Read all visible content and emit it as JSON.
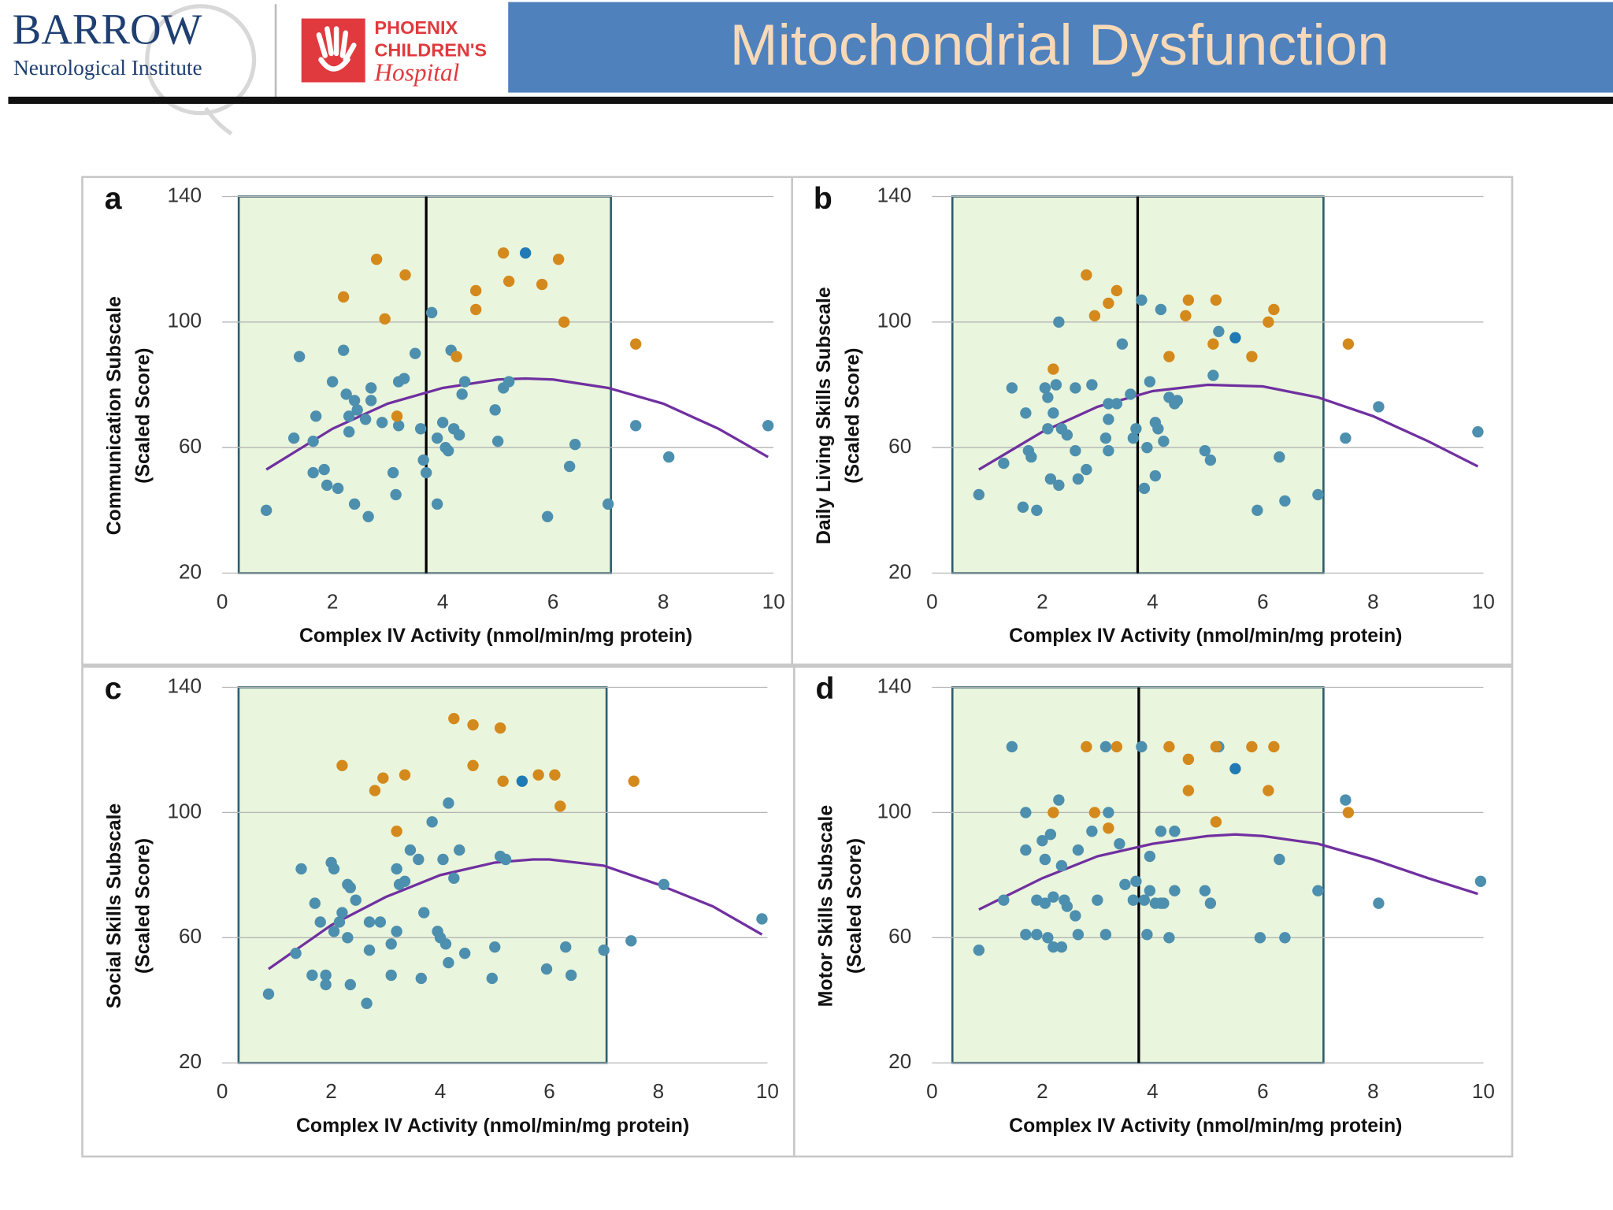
{
  "header": {
    "logo_left": "BARROW",
    "logo_left_sub": "Neurological Institute",
    "logo_right": [
      "PHOENIX",
      "CHILDREN'S",
      "Hospital"
    ],
    "title": "Mitochondrial Dysfunction"
  },
  "chart_data": [
    {
      "type": "scatter",
      "panel_label": "a",
      "ylabel": [
        "Communication Subscale",
        "(Scaled Score)"
      ],
      "xlabel": "Complex IV Activity (nmol/min/mg protein)",
      "xlim": [
        0,
        10
      ],
      "ylim": [
        20,
        140
      ],
      "xticks": [
        0,
        2,
        4,
        6,
        8,
        10
      ],
      "yticks": [
        20,
        60,
        100,
        140
      ],
      "grid": true,
      "region": {
        "x": [
          0.3,
          7.05
        ],
        "color": "#e9f5dc"
      },
      "vline": 3.7,
      "series": [
        {
          "color": "#4d8fae",
          "x": [
            0.8,
            1.3,
            1.4,
            1.65,
            1.7,
            1.65,
            1.85,
            1.9,
            2.0,
            2.1,
            2.2,
            2.25,
            2.3,
            2.3,
            2.4,
            2.4,
            2.45,
            2.6,
            2.65,
            2.7,
            2.7,
            2.9,
            3.1,
            3.15,
            3.2,
            3.2,
            3.3,
            3.5,
            3.6,
            3.65,
            3.7,
            3.8,
            3.9,
            3.9,
            4.0,
            4.05,
            4.15,
            4.1,
            4.2,
            4.3,
            4.35,
            4.4,
            4.95,
            5.0,
            5.1,
            5.2,
            5.9,
            6.3,
            6.4,
            7.0,
            7.5,
            8.1,
            9.9
          ],
          "values": [
            40,
            63,
            89,
            62,
            70,
            52,
            53,
            48,
            81,
            47,
            91,
            77,
            65,
            70,
            42,
            75,
            72,
            69,
            38,
            75,
            79,
            68,
            52,
            45,
            67,
            81,
            82,
            90,
            66,
            56,
            52,
            103,
            42,
            63,
            68,
            60,
            91,
            59,
            66,
            64,
            77,
            81,
            72,
            62,
            79,
            81,
            38,
            54,
            61,
            42,
            67,
            57,
            67
          ]
        },
        {
          "color": "#d4891c",
          "x": [
            2.2,
            2.8,
            2.95,
            3.32,
            3.17,
            4.25,
            4.6,
            4.6,
            5.1,
            5.2,
            5.8,
            6.1,
            6.2,
            7.5
          ],
          "values": [
            108,
            120,
            101,
            115,
            70,
            89,
            110,
            104,
            122,
            113,
            112,
            120,
            100,
            93
          ]
        },
        {
          "color": "#1f7ab5",
          "x": [
            5.5
          ],
          "values": [
            122
          ]
        }
      ],
      "fit": {
        "color": "#7030a0",
        "x": [
          0.8,
          2,
          3,
          4,
          5,
          5.5,
          6,
          7,
          8,
          9,
          9.9
        ],
        "y": [
          53,
          66,
          74,
          79,
          81.7,
          82,
          81.7,
          79,
          74,
          66,
          57
        ]
      }
    },
    {
      "type": "scatter",
      "panel_label": "b",
      "ylabel": [
        "Daily Living Skills Subscale",
        "(Scaled Score)"
      ],
      "xlabel": "Complex IV Activity (nmol/min/mg protein)",
      "xlim": [
        0,
        10
      ],
      "ylim": [
        20,
        140
      ],
      "xticks": [
        0,
        2,
        4,
        6,
        8,
        10
      ],
      "yticks": [
        20,
        60,
        100,
        140
      ],
      "grid": true,
      "region": {
        "x": [
          0.37,
          7.1
        ],
        "color": "#e9f5dc"
      },
      "vline": 3.73,
      "series": [
        {
          "color": "#4d8fae",
          "x": [
            0.85,
            1.3,
            1.45,
            1.65,
            1.7,
            1.75,
            1.9,
            1.8,
            2.05,
            2.1,
            2.1,
            2.15,
            2.2,
            2.3,
            2.25,
            2.3,
            2.35,
            2.45,
            2.6,
            2.65,
            2.6,
            2.8,
            2.9,
            3.15,
            3.2,
            3.2,
            3.2,
            3.35,
            3.45,
            3.6,
            3.65,
            3.7,
            3.8,
            3.85,
            3.9,
            3.95,
            4.05,
            4.15,
            4.05,
            4.1,
            4.2,
            4.3,
            4.4,
            4.45,
            4.95,
            5.05,
            5.1,
            5.2,
            5.9,
            6.3,
            6.4,
            7.0,
            7.5,
            8.1,
            9.9
          ],
          "values": [
            45,
            55,
            79,
            41,
            71,
            59,
            40,
            57,
            79,
            76,
            66,
            50,
            71,
            48,
            80,
            100,
            66,
            64,
            59,
            50,
            79,
            53,
            80,
            63,
            59,
            69,
            74,
            74,
            93,
            77,
            63,
            66,
            107,
            47,
            60,
            81,
            51,
            104,
            68,
            66,
            62,
            76,
            74,
            75,
            59,
            56,
            83,
            97,
            40,
            57,
            43,
            45,
            63,
            73,
            65
          ]
        },
        {
          "color": "#d4891c",
          "x": [
            2.2,
            2.8,
            2.95,
            3.2,
            3.35,
            4.3,
            4.6,
            4.65,
            5.1,
            5.15,
            5.8,
            6.1,
            6.2,
            7.55
          ],
          "values": [
            85,
            115,
            102,
            106,
            110,
            89,
            102,
            107,
            93,
            107,
            89,
            100,
            104,
            93
          ]
        },
        {
          "color": "#1f7ab5",
          "x": [
            5.5
          ],
          "values": [
            95
          ]
        }
      ],
      "fit": {
        "color": "#7030a0",
        "x": [
          0.85,
          2,
          3,
          4,
          5,
          6,
          7,
          8,
          9,
          9.9
        ],
        "y": [
          53,
          65,
          73,
          78,
          80,
          79.5,
          76,
          70,
          62,
          54
        ]
      }
    },
    {
      "type": "scatter",
      "panel_label": "c",
      "ylabel": [
        "Social Skills Subscale",
        "(Scaled Score)"
      ],
      "xlabel": "Complex IV Activity (nmol/min/mg protein)",
      "xlim": [
        0,
        10
      ],
      "ylim": [
        20,
        140
      ],
      "xticks": [
        0,
        2,
        4,
        6,
        8,
        10
      ],
      "yticks": [
        20,
        60,
        100,
        140
      ],
      "grid": true,
      "region": {
        "x": [
          0.3,
          7.05
        ],
        "color": "#e9f5dc"
      },
      "series": [
        {
          "color": "#4d8fae",
          "x": [
            0.85,
            1.35,
            1.45,
            1.65,
            1.7,
            1.8,
            1.9,
            1.9,
            2.0,
            2.05,
            2.05,
            2.15,
            2.2,
            2.3,
            2.35,
            2.35,
            2.45,
            2.3,
            2.65,
            2.7,
            2.7,
            2.9,
            3.1,
            3.1,
            3.2,
            3.2,
            3.25,
            3.35,
            3.45,
            3.6,
            3.65,
            3.7,
            3.85,
            3.95,
            4.0,
            4.05,
            4.1,
            4.15,
            4.15,
            4.25,
            4.35,
            4.45,
            4.95,
            5.0,
            5.1,
            5.2,
            5.95,
            6.3,
            6.4,
            7.0,
            7.5,
            8.1,
            9.9
          ],
          "values": [
            42,
            55,
            82,
            48,
            71,
            65,
            45,
            48,
            84,
            82,
            62,
            65,
            68,
            77,
            76,
            45,
            72,
            60,
            39,
            56,
            65,
            65,
            48,
            58,
            62,
            82,
            77,
            78,
            88,
            85,
            47,
            68,
            97,
            62,
            60,
            85,
            58,
            103,
            52,
            79,
            88,
            55,
            47,
            57,
            86,
            85,
            50,
            57,
            48,
            56,
            59,
            77,
            66
          ]
        },
        {
          "color": "#d4891c",
          "x": [
            2.2,
            2.8,
            2.95,
            3.35,
            3.2,
            4.25,
            4.6,
            4.6,
            5.1,
            5.15,
            5.8,
            6.1,
            6.2,
            7.55
          ],
          "values": [
            115,
            107,
            111,
            112,
            94,
            130,
            128,
            115,
            127,
            110,
            112,
            112,
            102,
            110
          ]
        },
        {
          "color": "#1f7ab5",
          "x": [
            5.5
          ],
          "values": [
            110
          ]
        }
      ],
      "fit": {
        "color": "#7030a0",
        "x": [
          0.85,
          2,
          3,
          4,
          5,
          5.7,
          6,
          7,
          8,
          9,
          9.9
        ],
        "y": [
          50,
          64,
          73,
          80,
          84,
          85,
          85,
          83,
          77,
          70,
          61
        ]
      }
    },
    {
      "type": "scatter",
      "panel_label": "d",
      "ylabel": [
        "Motor Skills Subscale",
        "(Scaled Score)"
      ],
      "xlabel": "Complex IV Activity (nmol/min/mg protein)",
      "xlim": [
        0,
        10
      ],
      "ylim": [
        20,
        140
      ],
      "xticks": [
        0,
        2,
        4,
        6,
        8,
        10
      ],
      "yticks": [
        20,
        60,
        100,
        140
      ],
      "grid": true,
      "region": {
        "x": [
          0.37,
          7.1
        ],
        "color": "#e9f5dc"
      },
      "vline": 3.75,
      "series": [
        {
          "color": "#4d8fae",
          "x": [
            0.85,
            1.3,
            1.45,
            1.7,
            1.7,
            1.7,
            1.9,
            1.9,
            2.0,
            2.05,
            2.05,
            2.1,
            2.15,
            2.2,
            2.2,
            2.3,
            2.35,
            2.35,
            2.4,
            2.45,
            2.6,
            2.65,
            2.65,
            2.9,
            3.0,
            3.15,
            3.2,
            3.15,
            3.4,
            3.5,
            3.65,
            3.7,
            3.8,
            3.85,
            3.9,
            3.95,
            3.95,
            4.05,
            4.15,
            4.15,
            4.2,
            4.3,
            4.4,
            4.4,
            4.95,
            5.05,
            5.2,
            5.95,
            6.3,
            6.4,
            7.0,
            7.5,
            8.1,
            9.95
          ],
          "values": [
            56,
            72,
            121,
            100,
            88,
            61,
            72,
            61,
            91,
            85,
            71,
            60,
            93,
            73,
            57,
            104,
            57,
            83,
            72,
            70,
            67,
            88,
            61,
            94,
            72,
            121,
            100,
            61,
            90,
            77,
            72,
            78,
            121,
            72,
            61,
            86,
            75,
            71,
            94,
            71,
            71,
            60,
            94,
            75,
            75,
            71,
            121,
            60,
            85,
            60,
            75,
            104,
            71,
            78
          ]
        },
        {
          "color": "#d4891c",
          "x": [
            2.2,
            2.8,
            2.95,
            3.2,
            3.35,
            4.3,
            4.65,
            4.65,
            5.15,
            5.15,
            5.8,
            6.1,
            6.2,
            7.55
          ],
          "values": [
            100,
            121,
            100,
            95,
            121,
            121,
            117,
            107,
            97,
            121,
            121,
            107,
            121,
            100
          ]
        },
        {
          "color": "#1f7ab5",
          "x": [
            5.5
          ],
          "values": [
            114
          ]
        }
      ],
      "fit": {
        "color": "#7030a0",
        "x": [
          0.85,
          2,
          3,
          4,
          5,
          5.5,
          6,
          7,
          8,
          9,
          9.9
        ],
        "y": [
          69,
          79,
          86,
          90,
          92.5,
          93,
          92.5,
          90,
          85,
          79,
          74
        ]
      }
    }
  ]
}
